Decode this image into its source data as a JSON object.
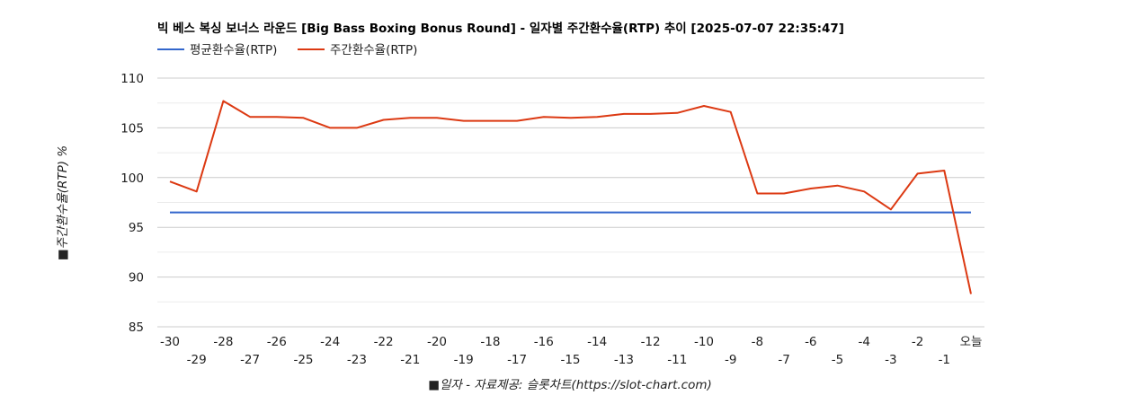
{
  "chart_data": {
    "type": "line",
    "title": "빅 베스 복싱 보너스 라운드 [Big Bass Boxing Bonus Round] - 일자별 주간환수율(RTP) 추이 [2025-07-07 22:35:47]",
    "xlabel": "■일자 - 자료제공: 슬롯차트(https://slot-chart.com)",
    "ylabel": "■주간환수율(RTP) %",
    "ylim": [
      85,
      110
    ],
    "yticks": [
      "85",
      "90",
      "95",
      "100",
      "105",
      "110"
    ],
    "categories": [
      "-30",
      "-29",
      "-28",
      "-27",
      "-26",
      "-25",
      "-24",
      "-23",
      "-22",
      "-21",
      "-20",
      "-19",
      "-18",
      "-17",
      "-16",
      "-15",
      "-14",
      "-13",
      "-12",
      "-11",
      "-10",
      "-9",
      "-8",
      "-7",
      "-6",
      "-5",
      "-4",
      "-3",
      "-2",
      "-1",
      "오늘"
    ],
    "legend_position": "top-left",
    "grid": true,
    "series": [
      {
        "name": "평균환수율(RTP)",
        "color": "#3366cc",
        "values": [
          96.5,
          96.5,
          96.5,
          96.5,
          96.5,
          96.5,
          96.5,
          96.5,
          96.5,
          96.5,
          96.5,
          96.5,
          96.5,
          96.5,
          96.5,
          96.5,
          96.5,
          96.5,
          96.5,
          96.5,
          96.5,
          96.5,
          96.5,
          96.5,
          96.5,
          96.5,
          96.5,
          96.5,
          96.5,
          96.5,
          96.5
        ]
      },
      {
        "name": "주간환수율(RTP)",
        "color": "#dc3912",
        "values": [
          99.6,
          98.6,
          107.7,
          106.1,
          106.1,
          106.0,
          105.0,
          105.0,
          105.8,
          106.0,
          106.0,
          105.7,
          105.7,
          105.7,
          106.1,
          106.0,
          106.1,
          106.4,
          106.4,
          106.5,
          107.2,
          106.6,
          98.4,
          98.4,
          98.9,
          99.2,
          98.6,
          96.8,
          100.4,
          100.7,
          88.3
        ]
      }
    ]
  }
}
